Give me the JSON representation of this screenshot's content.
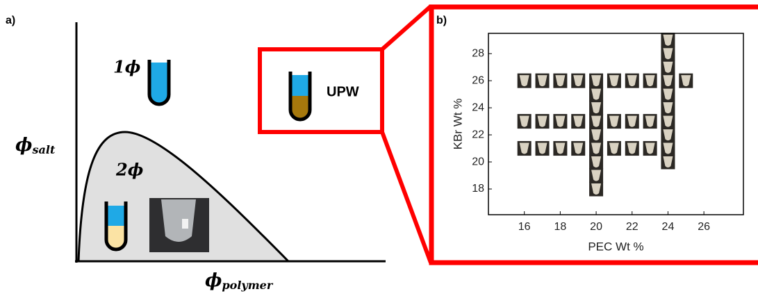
{
  "panel_a": {
    "label": "a)",
    "one_phase": "1ϕ",
    "two_phase": "2ϕ",
    "upw": "UPW",
    "y_label": {
      "symbol": "ϕ",
      "subscript": "salt"
    },
    "x_label": {
      "symbol": "ϕ",
      "subscript": "polymer"
    }
  },
  "chart_data": {
    "type": "scatter",
    "panel_label": "b)",
    "x_label": "PEC Wt %",
    "y_label": "KBr Wt %",
    "x": [
      16,
      17,
      18,
      19,
      21,
      22,
      23,
      16,
      17,
      18,
      19,
      21,
      22,
      23,
      16,
      17,
      18,
      19,
      21,
      22,
      23,
      25,
      20,
      20,
      20,
      20,
      20,
      20,
      20,
      20,
      20,
      24,
      24,
      24,
      24,
      24,
      24,
      24,
      24,
      24,
      24
    ],
    "y": [
      21,
      21,
      21,
      21,
      21,
      21,
      21,
      23,
      23,
      23,
      23,
      23,
      23,
      23,
      26,
      26,
      26,
      26,
      26,
      26,
      26,
      26,
      18,
      19,
      20,
      21,
      22,
      23,
      24,
      25,
      26,
      20,
      21,
      22,
      23,
      24,
      25,
      26,
      27,
      28,
      29
    ],
    "xlim": [
      14,
      28.2
    ],
    "ylim": [
      16.1,
      29.5
    ],
    "xticks": [
      16,
      18,
      20,
      22,
      24,
      26
    ],
    "yticks": [
      18,
      20,
      22,
      24,
      26,
      28
    ],
    "marker_color": "#2b2824",
    "vial_color": "#d9d2c2"
  }
}
